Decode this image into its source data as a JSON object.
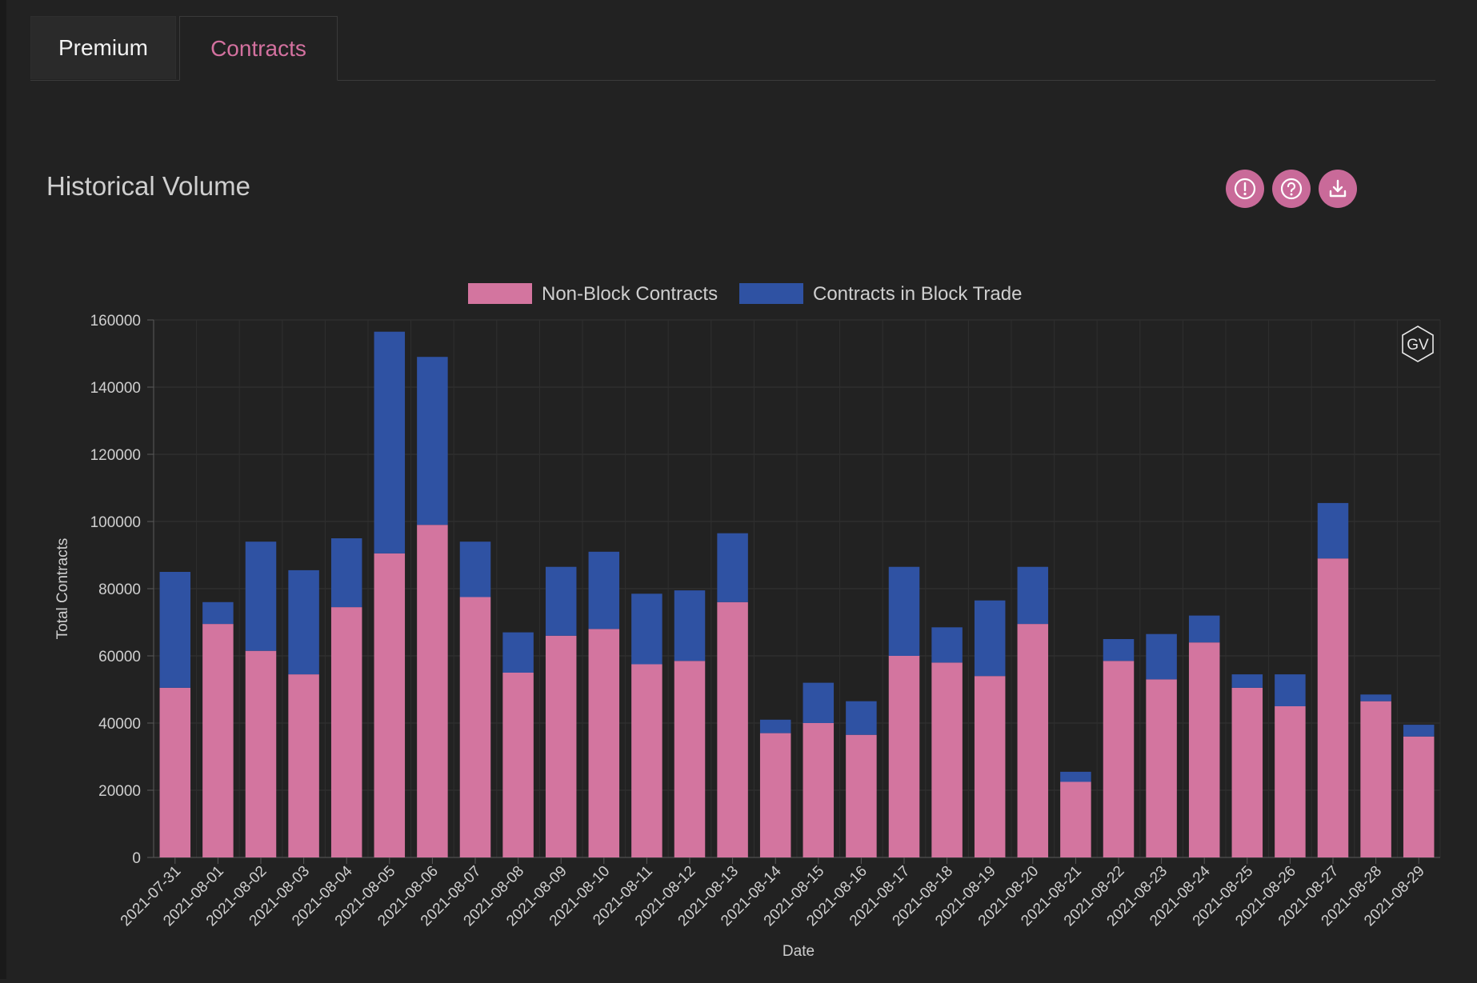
{
  "tabs": [
    {
      "label": "Premium",
      "active": false
    },
    {
      "label": "Contracts",
      "active": true
    }
  ],
  "panel": {
    "title": "Historical Volume"
  },
  "toolbar": {
    "info_icon": "info-icon",
    "help_icon": "question-icon",
    "download_icon": "download-icon"
  },
  "watermark": {
    "text": "GV"
  },
  "colors": {
    "non_block": "#d3759f",
    "block": "#2f52a3",
    "accent": "#c96a99",
    "background": "#222222"
  },
  "chart_data": {
    "type": "bar",
    "stacked": true,
    "title": "",
    "xlabel": "Date",
    "ylabel": "Total Contracts",
    "ylim": [
      0,
      160000
    ],
    "yticks": [
      0,
      20000,
      40000,
      60000,
      80000,
      100000,
      120000,
      140000,
      160000
    ],
    "legend_position": "top-center",
    "grid": true,
    "categories": [
      "2021-07-31",
      "2021-08-01",
      "2021-08-02",
      "2021-08-03",
      "2021-08-04",
      "2021-08-05",
      "2021-08-06",
      "2021-08-07",
      "2021-08-08",
      "2021-08-09",
      "2021-08-10",
      "2021-08-11",
      "2021-08-12",
      "2021-08-13",
      "2021-08-14",
      "2021-08-15",
      "2021-08-16",
      "2021-08-17",
      "2021-08-18",
      "2021-08-19",
      "2021-08-20",
      "2021-08-21",
      "2021-08-22",
      "2021-08-23",
      "2021-08-24",
      "2021-08-25",
      "2021-08-26",
      "2021-08-27",
      "2021-08-28",
      "2021-08-29"
    ],
    "series": [
      {
        "name": "Non-Block Contracts",
        "color": "#d3759f",
        "values": [
          50500,
          69500,
          61500,
          54500,
          74500,
          90500,
          99000,
          77500,
          55000,
          66000,
          68000,
          57500,
          58500,
          76000,
          37000,
          40000,
          36500,
          60000,
          58000,
          54000,
          69500,
          22500,
          58500,
          53000,
          64000,
          50500,
          45000,
          89000,
          46500,
          36000
        ]
      },
      {
        "name": "Contracts in Block Trade",
        "color": "#2f52a3",
        "values": [
          34500,
          6500,
          32500,
          31000,
          20500,
          66000,
          50000,
          16500,
          12000,
          20500,
          23000,
          21000,
          21000,
          20500,
          4000,
          12000,
          10000,
          26500,
          10500,
          22500,
          17000,
          3000,
          6500,
          13500,
          8000,
          4000,
          9500,
          16500,
          2000,
          3500
        ]
      }
    ]
  }
}
